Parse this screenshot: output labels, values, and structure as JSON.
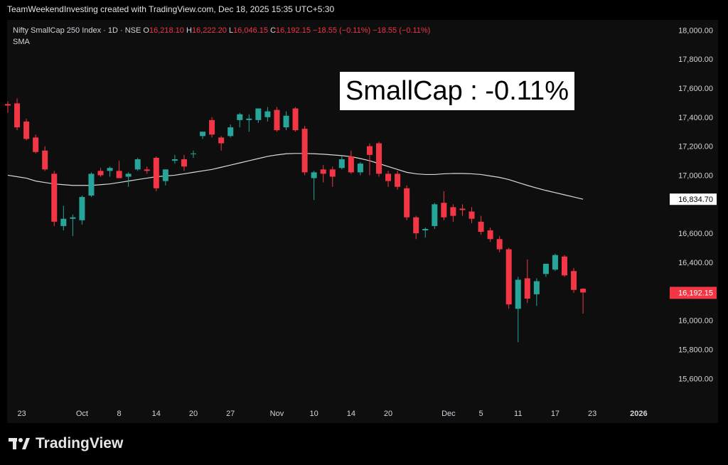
{
  "credit_text": "TeamWeekendInvesting created with TradingView.com, Dec 18, 2025 15:35 UTC+5:30",
  "header": {
    "symbol": "Nifty SmallCap 250 Index · 1D · NSE",
    "o_label": "O",
    "o_value": "16,218.10",
    "h_label": "H",
    "h_value": "16,222.20",
    "l_label": "L",
    "l_value": "16,046.15",
    "c_label": "C",
    "c_value": "16,192.15",
    "change": "−18.55 (−0.11%)",
    "change2": "−18.55 (−0.11%)"
  },
  "indicator_label": "SMA",
  "annotation_text": "SmallCap : -0.11%",
  "brand": {
    "name": "TradingView",
    "icon": "tradingview-logo-icon"
  },
  "colors": {
    "up": "#26a69a",
    "down": "#f23645",
    "sma": "#d9d9d9",
    "background": "#000000",
    "panel": "#0e0e0e"
  },
  "chart_data": {
    "type": "candlestick",
    "ylim": [
      15430,
      18070
    ],
    "y_ticks": [
      18000,
      17800,
      17600,
      17400,
      17200,
      17000,
      16600,
      16400,
      16000,
      15800,
      15600
    ],
    "y_tick_labels": [
      "18,000.00",
      "17,800.00",
      "17,600.00",
      "17,400.00",
      "17,200.00",
      "17,000.00",
      "16,600.00",
      "16,400.00",
      "16,000.00",
      "15,800.00",
      "15,600.00"
    ],
    "x_tick_labels": [
      "23",
      "Oct",
      "8",
      "14",
      "20",
      "27",
      "Nov",
      "10",
      "14",
      "20",
      "Dec",
      "5",
      "11",
      "17",
      "23",
      "2026"
    ],
    "x_tick_index": [
      1.5,
      8,
      12,
      16,
      20,
      24,
      29,
      33,
      37,
      41,
      47.5,
      51,
      55,
      59,
      63,
      68
    ],
    "x_tick_bold": [
      false,
      false,
      false,
      false,
      false,
      false,
      false,
      false,
      false,
      false,
      false,
      false,
      false,
      false,
      false,
      true
    ],
    "candles": [
      {
        "o": 17490,
        "h": 17510,
        "l": 17430,
        "c": 17480
      },
      {
        "o": 17495,
        "h": 17530,
        "l": 17310,
        "c": 17330
      },
      {
        "o": 17370,
        "h": 17390,
        "l": 17240,
        "c": 17250
      },
      {
        "o": 17260,
        "h": 17280,
        "l": 17150,
        "c": 17160
      },
      {
        "o": 17170,
        "h": 17200,
        "l": 17030,
        "c": 17040
      },
      {
        "o": 17010,
        "h": 17030,
        "l": 16650,
        "c": 16680
      },
      {
        "o": 16650,
        "h": 16790,
        "l": 16620,
        "c": 16700
      },
      {
        "o": 16700,
        "h": 16730,
        "l": 16580,
        "c": 16710
      },
      {
        "o": 16690,
        "h": 16860,
        "l": 16660,
        "c": 16850
      },
      {
        "o": 16860,
        "h": 17020,
        "l": 16850,
        "c": 17010
      },
      {
        "o": 17030,
        "h": 17050,
        "l": 16990,
        "c": 17000
      },
      {
        "o": 17030,
        "h": 17060,
        "l": 16990,
        "c": 17050
      },
      {
        "o": 17030,
        "h": 17100,
        "l": 16980,
        "c": 16980
      },
      {
        "o": 16990,
        "h": 17020,
        "l": 16920,
        "c": 17010
      },
      {
        "o": 17040,
        "h": 17120,
        "l": 17030,
        "c": 17110
      },
      {
        "o": 17040,
        "h": 17060,
        "l": 17010,
        "c": 17030
      },
      {
        "o": 17120,
        "h": 17130,
        "l": 16890,
        "c": 16910
      },
      {
        "o": 16960,
        "h": 17040,
        "l": 16930,
        "c": 17040
      },
      {
        "o": 17100,
        "h": 17140,
        "l": 17080,
        "c": 17110
      },
      {
        "o": 17110,
        "h": 17140,
        "l": 17030,
        "c": 17060
      },
      {
        "o": 17150,
        "h": 17170,
        "l": 17120,
        "c": 17150
      },
      {
        "o": 17270,
        "h": 17300,
        "l": 17250,
        "c": 17300
      },
      {
        "o": 17380,
        "h": 17400,
        "l": 17260,
        "c": 17280
      },
      {
        "o": 17260,
        "h": 17270,
        "l": 17170,
        "c": 17220
      },
      {
        "o": 17270,
        "h": 17350,
        "l": 17260,
        "c": 17330
      },
      {
        "o": 17380,
        "h": 17430,
        "l": 17330,
        "c": 17420
      },
      {
        "o": 17380,
        "h": 17420,
        "l": 17300,
        "c": 17390
      },
      {
        "o": 17380,
        "h": 17460,
        "l": 17360,
        "c": 17460
      },
      {
        "o": 17400,
        "h": 17470,
        "l": 17370,
        "c": 17440
      },
      {
        "o": 17450,
        "h": 17470,
        "l": 17300,
        "c": 17310
      },
      {
        "o": 17330,
        "h": 17440,
        "l": 17310,
        "c": 17410
      },
      {
        "o": 17460,
        "h": 17470,
        "l": 17300,
        "c": 17310
      },
      {
        "o": 17320,
        "h": 17340,
        "l": 17000,
        "c": 17020
      },
      {
        "o": 16980,
        "h": 17030,
        "l": 16830,
        "c": 17020
      },
      {
        "o": 17040,
        "h": 17070,
        "l": 16950,
        "c": 17010
      },
      {
        "o": 17040,
        "h": 17060,
        "l": 16920,
        "c": 16990
      },
      {
        "o": 17050,
        "h": 17130,
        "l": 17040,
        "c": 17110
      },
      {
        "o": 17130,
        "h": 17170,
        "l": 17010,
        "c": 17020
      },
      {
        "o": 17020,
        "h": 17090,
        "l": 17000,
        "c": 17080
      },
      {
        "o": 17200,
        "h": 17220,
        "l": 17000,
        "c": 17140
      },
      {
        "o": 17220,
        "h": 17230,
        "l": 16990,
        "c": 17010
      },
      {
        "o": 17010,
        "h": 17030,
        "l": 16920,
        "c": 16960
      },
      {
        "o": 17010,
        "h": 17030,
        "l": 16900,
        "c": 16920
      },
      {
        "o": 16910,
        "h": 16930,
        "l": 16690,
        "c": 16710
      },
      {
        "o": 16710,
        "h": 16720,
        "l": 16560,
        "c": 16600
      },
      {
        "o": 16620,
        "h": 16640,
        "l": 16570,
        "c": 16630
      },
      {
        "o": 16650,
        "h": 16810,
        "l": 16630,
        "c": 16800
      },
      {
        "o": 16810,
        "h": 16890,
        "l": 16690,
        "c": 16710
      },
      {
        "o": 16780,
        "h": 16800,
        "l": 16680,
        "c": 16720
      },
      {
        "o": 16770,
        "h": 16800,
        "l": 16720,
        "c": 16760
      },
      {
        "o": 16750,
        "h": 16780,
        "l": 16670,
        "c": 16700
      },
      {
        "o": 16680,
        "h": 16720,
        "l": 16590,
        "c": 16610
      },
      {
        "o": 16620,
        "h": 16640,
        "l": 16540,
        "c": 16560
      },
      {
        "o": 16560,
        "h": 16580,
        "l": 16470,
        "c": 16490
      },
      {
        "o": 16490,
        "h": 16500,
        "l": 16080,
        "c": 16110
      },
      {
        "o": 16080,
        "h": 16300,
        "l": 15850,
        "c": 16280
      },
      {
        "o": 16290,
        "h": 16420,
        "l": 16120,
        "c": 16150
      },
      {
        "o": 16180,
        "h": 16290,
        "l": 16100,
        "c": 16270
      },
      {
        "o": 16320,
        "h": 16390,
        "l": 16300,
        "c": 16390
      },
      {
        "o": 16350,
        "h": 16460,
        "l": 16340,
        "c": 16450
      },
      {
        "o": 16440,
        "h": 16450,
        "l": 16300,
        "c": 16310
      },
      {
        "o": 16340,
        "h": 16360,
        "l": 16190,
        "c": 16210
      },
      {
        "o": 16218.1,
        "h": 16222.2,
        "l": 16046.15,
        "c": 16192.15
      }
    ],
    "sma": [
      17000,
      16990,
      16980,
      16960,
      16950,
      16940,
      16935,
      16930,
      16930,
      16930,
      16935,
      16940,
      16950,
      16960,
      16970,
      16980,
      16990,
      16995,
      17000,
      17010,
      17020,
      17030,
      17040,
      17055,
      17070,
      17085,
      17100,
      17115,
      17130,
      17140,
      17148,
      17150,
      17150,
      17148,
      17145,
      17140,
      17135,
      17128,
      17115,
      17100,
      17080,
      17060,
      17040,
      17020,
      17010,
      17005,
      17005,
      17010,
      17012,
      17012,
      17010,
      17005,
      16995,
      16985,
      16970,
      16950,
      16930,
      16912,
      16895,
      16880,
      16865,
      16850,
      16834.7
    ],
    "last_sma_label": "16,834.70",
    "last_price_label": "16,192.15"
  }
}
